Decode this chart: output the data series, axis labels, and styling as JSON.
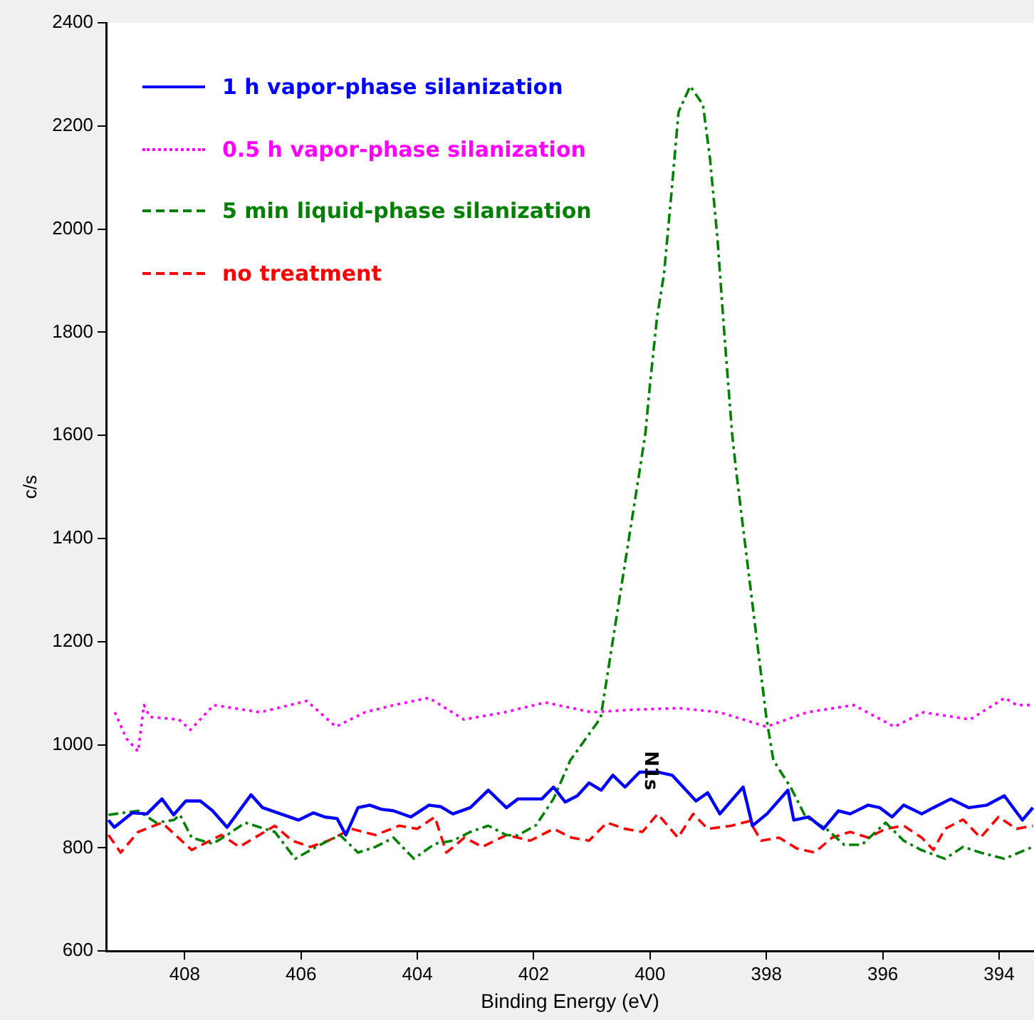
{
  "chart_data": {
    "type": "line",
    "xlabel": "Binding Energy (eV)",
    "ylabel": "c/s",
    "xlim": [
      409.35,
      393.4
    ],
    "xticks": [
      408,
      406,
      404,
      402,
      400,
      398,
      396,
      394
    ],
    "ylim": [
      600,
      2400
    ],
    "yticks": [
      600,
      800,
      1000,
      1200,
      1400,
      1600,
      1800,
      2000,
      2200,
      2400
    ],
    "grid": false,
    "legend": "top left",
    "marker": "none",
    "annotations": [
      {
        "text": "N1s",
        "x": 400,
        "y": 950
      }
    ],
    "series": [
      {
        "name": "1 h vapor-phase silanization",
        "color": "#0000ff",
        "line_style": "solid",
        "x": [
          409.31,
          409.21,
          408.9,
          408.65,
          408.39,
          408.19,
          407.98,
          407.73,
          407.52,
          407.27,
          406.86,
          406.66,
          406.35,
          406.04,
          405.79,
          405.59,
          405.38,
          405.23,
          405.02,
          404.82,
          404.62,
          404.41,
          404.11,
          403.8,
          403.6,
          403.39,
          403.09,
          402.78,
          402.47,
          402.27,
          401.86,
          401.66,
          401.46,
          401.25,
          401.05,
          400.84,
          400.64,
          400.43,
          400.18,
          399.87,
          399.62,
          399.21,
          399.01,
          398.8,
          398.4,
          398.24,
          397.99,
          397.63,
          397.53,
          397.27,
          397.02,
          396.76,
          396.56,
          396.25,
          396.05,
          395.84,
          395.64,
          395.33,
          395.13,
          394.83,
          394.52,
          394.21,
          393.91,
          393.6,
          393.42
        ],
        "values": [
          854,
          840,
          868,
          866,
          895,
          864,
          891,
          891,
          872,
          840,
          903,
          878,
          866,
          854,
          868,
          860,
          857,
          825,
          878,
          883,
          875,
          872,
          860,
          883,
          880,
          866,
          878,
          912,
          878,
          895,
          895,
          918,
          889,
          901,
          926,
          912,
          941,
          918,
          947,
          947,
          941,
          891,
          907,
          866,
          918,
          843,
          866,
          912,
          854,
          860,
          837,
          872,
          866,
          883,
          878,
          860,
          883,
          866,
          878,
          895,
          878,
          883,
          901,
          854,
          878
        ]
      },
      {
        "name": "0.5 h vapor-phase silanization",
        "color": "#ff00ff",
        "line_style": "dotted",
        "x": [
          409.2,
          409.0,
          408.8,
          408.7,
          408.6,
          408.1,
          407.9,
          407.5,
          406.7,
          405.9,
          405.4,
          404.9,
          404.4,
          403.8,
          403.2,
          402.5,
          401.8,
          401.0,
          400.3,
          399.5,
          398.8,
          398.0,
          397.3,
          396.5,
          395.8,
          395.3,
          394.5,
          393.9,
          393.7,
          393.4
        ],
        "values": [
          1063,
          1012,
          987,
          1077,
          1054,
          1049,
          1029,
          1077,
          1063,
          1085,
          1035,
          1063,
          1077,
          1091,
          1049,
          1063,
          1082,
          1063,
          1068,
          1071,
          1063,
          1035,
          1063,
          1077,
          1035,
          1063,
          1049,
          1091,
          1077,
          1077
        ]
      },
      {
        "name": "5 min liquid-phase silanization",
        "color": "#008000",
        "line_style": "dashdot",
        "x": [
          409.31,
          408.8,
          408.49,
          408.19,
          408.08,
          407.88,
          407.52,
          407.27,
          406.96,
          406.45,
          406.1,
          405.74,
          405.33,
          405.02,
          404.72,
          404.41,
          404.06,
          403.7,
          403.39,
          403.09,
          402.78,
          402.47,
          402.28,
          401.96,
          401.66,
          401.37,
          400.85,
          400.18,
          400.08,
          400.0,
          399.88,
          399.76,
          399.63,
          399.51,
          399.31,
          399.09,
          398.97,
          398.84,
          398.72,
          398.59,
          398.52,
          398.0,
          397.88,
          397.58,
          397.33,
          396.97,
          396.66,
          396.36,
          395.95,
          395.64,
          395.34,
          394.93,
          394.62,
          394.32,
          393.91,
          393.42
        ],
        "values": [
          864,
          872,
          849,
          854,
          864,
          820,
          808,
          825,
          849,
          831,
          779,
          802,
          825,
          791,
          802,
          820,
          779,
          808,
          814,
          831,
          843,
          825,
          824,
          844,
          895,
          970,
          1052,
          1531,
          1604,
          1700,
          1829,
          1913,
          2073,
          2227,
          2277,
          2241,
          2137,
          1980,
          1792,
          1604,
          1531,
          1052,
          970,
          917,
          861,
          837,
          806,
          806,
          849,
          814,
          796,
          779,
          802,
          791,
          779,
          802
        ]
      },
      {
        "name": "no treatment",
        "color": "#ff0000",
        "line_style": "dashed",
        "x": [
          409.31,
          409.1,
          408.8,
          408.39,
          407.88,
          407.37,
          407.06,
          406.45,
          406.15,
          405.84,
          405.53,
          405.13,
          404.72,
          404.31,
          404.0,
          403.7,
          403.5,
          403.19,
          402.88,
          402.47,
          402.06,
          401.66,
          401.35,
          401.05,
          400.74,
          400.43,
          400.13,
          399.87,
          399.52,
          399.26,
          399.01,
          398.6,
          398.29,
          398.09,
          397.78,
          397.48,
          397.17,
          396.87,
          396.56,
          396.25,
          395.95,
          395.64,
          395.33,
          395.13,
          394.93,
          394.62,
          394.32,
          394.01,
          393.7,
          393.42
        ],
        "values": [
          825,
          791,
          831,
          849,
          796,
          825,
          802,
          843,
          814,
          802,
          814,
          837,
          825,
          843,
          837,
          860,
          791,
          820,
          802,
          825,
          814,
          837,
          820,
          814,
          849,
          837,
          831,
          866,
          820,
          866,
          837,
          843,
          852,
          814,
          820,
          799,
          791,
          820,
          831,
          820,
          837,
          843,
          820,
          796,
          837,
          855,
          820,
          860,
          837,
          843
        ]
      }
    ]
  }
}
